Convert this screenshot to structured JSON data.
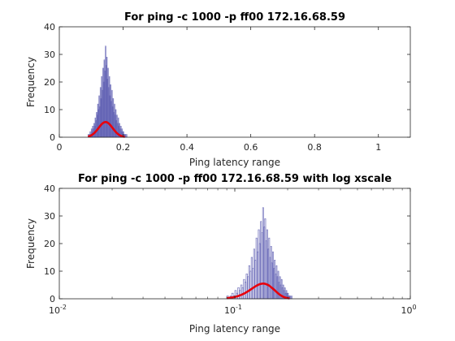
{
  "chart_data": [
    {
      "type": "bar",
      "title": "For ping -c 1000 -p ff00 172.16.68.59",
      "xlabel": "Ping latency range",
      "ylabel": "Frequency",
      "xlim": [
        0,
        1.1
      ],
      "ylim": [
        0,
        40
      ],
      "xscale": "linear",
      "xticks": [
        0,
        0.2,
        0.4,
        0.6,
        0.8,
        1
      ],
      "xtick_labels": [
        "0",
        "0.2",
        "0.4",
        "0.6",
        "0.8",
        "1"
      ],
      "yticks": [
        0,
        10,
        20,
        30,
        40
      ],
      "ytick_labels": [
        "0",
        "10",
        "20",
        "30",
        "40"
      ],
      "grid": false,
      "histogram": {
        "bin_start": 0.09,
        "bin_width": 0.002,
        "counts": [
          1,
          0,
          1,
          2,
          1,
          3,
          2,
          4,
          3,
          5,
          4,
          7,
          6,
          9,
          8,
          12,
          10,
          15,
          11,
          18,
          14,
          22,
          17,
          25,
          20,
          28,
          24,
          33,
          26,
          29,
          21,
          25,
          18,
          22,
          15,
          19,
          13,
          17,
          11,
          14,
          9,
          12,
          8,
          10,
          6,
          8,
          5,
          7,
          4,
          5,
          3,
          4,
          2,
          3,
          2,
          2,
          1,
          1,
          1,
          0,
          1
        ]
      },
      "fit_curve": {
        "type": "normal",
        "mean": 0.145,
        "sd": 0.022,
        "peak": 5.5,
        "x_range": [
          0.09,
          0.205
        ]
      }
    },
    {
      "type": "bar",
      "title": "For ping -c 1000 -p ff00 172.16.68.59 with log xscale",
      "xlabel": "Ping latency range",
      "ylabel": "Frequency",
      "xlim": [
        0.01,
        1
      ],
      "ylim": [
        0,
        40
      ],
      "xscale": "log",
      "xticks": [
        0.01,
        0.1,
        1
      ],
      "xtick_labels": [
        {
          "base": "10",
          "exp": "-2"
        },
        {
          "base": "10",
          "exp": "-1"
        },
        {
          "base": "10",
          "exp": "0"
        }
      ],
      "yticks": [
        0,
        10,
        20,
        30,
        40
      ],
      "ytick_labels": [
        "0",
        "10",
        "20",
        "30",
        "40"
      ],
      "grid": false,
      "histogram": {
        "bin_start": 0.09,
        "bin_width": 0.002,
        "counts": [
          1,
          0,
          1,
          2,
          1,
          3,
          2,
          4,
          3,
          5,
          4,
          7,
          6,
          9,
          8,
          12,
          10,
          15,
          11,
          18,
          14,
          22,
          17,
          25,
          20,
          28,
          24,
          33,
          26,
          29,
          21,
          25,
          18,
          22,
          15,
          19,
          13,
          17,
          11,
          14,
          9,
          12,
          8,
          10,
          6,
          8,
          5,
          7,
          4,
          5,
          3,
          4,
          2,
          3,
          2,
          2,
          1,
          1,
          1,
          0,
          1
        ]
      },
      "fit_curve": {
        "type": "normal",
        "mean": 0.145,
        "sd": 0.022,
        "peak": 5.5,
        "x_range": [
          0.09,
          0.205
        ]
      }
    }
  ]
}
